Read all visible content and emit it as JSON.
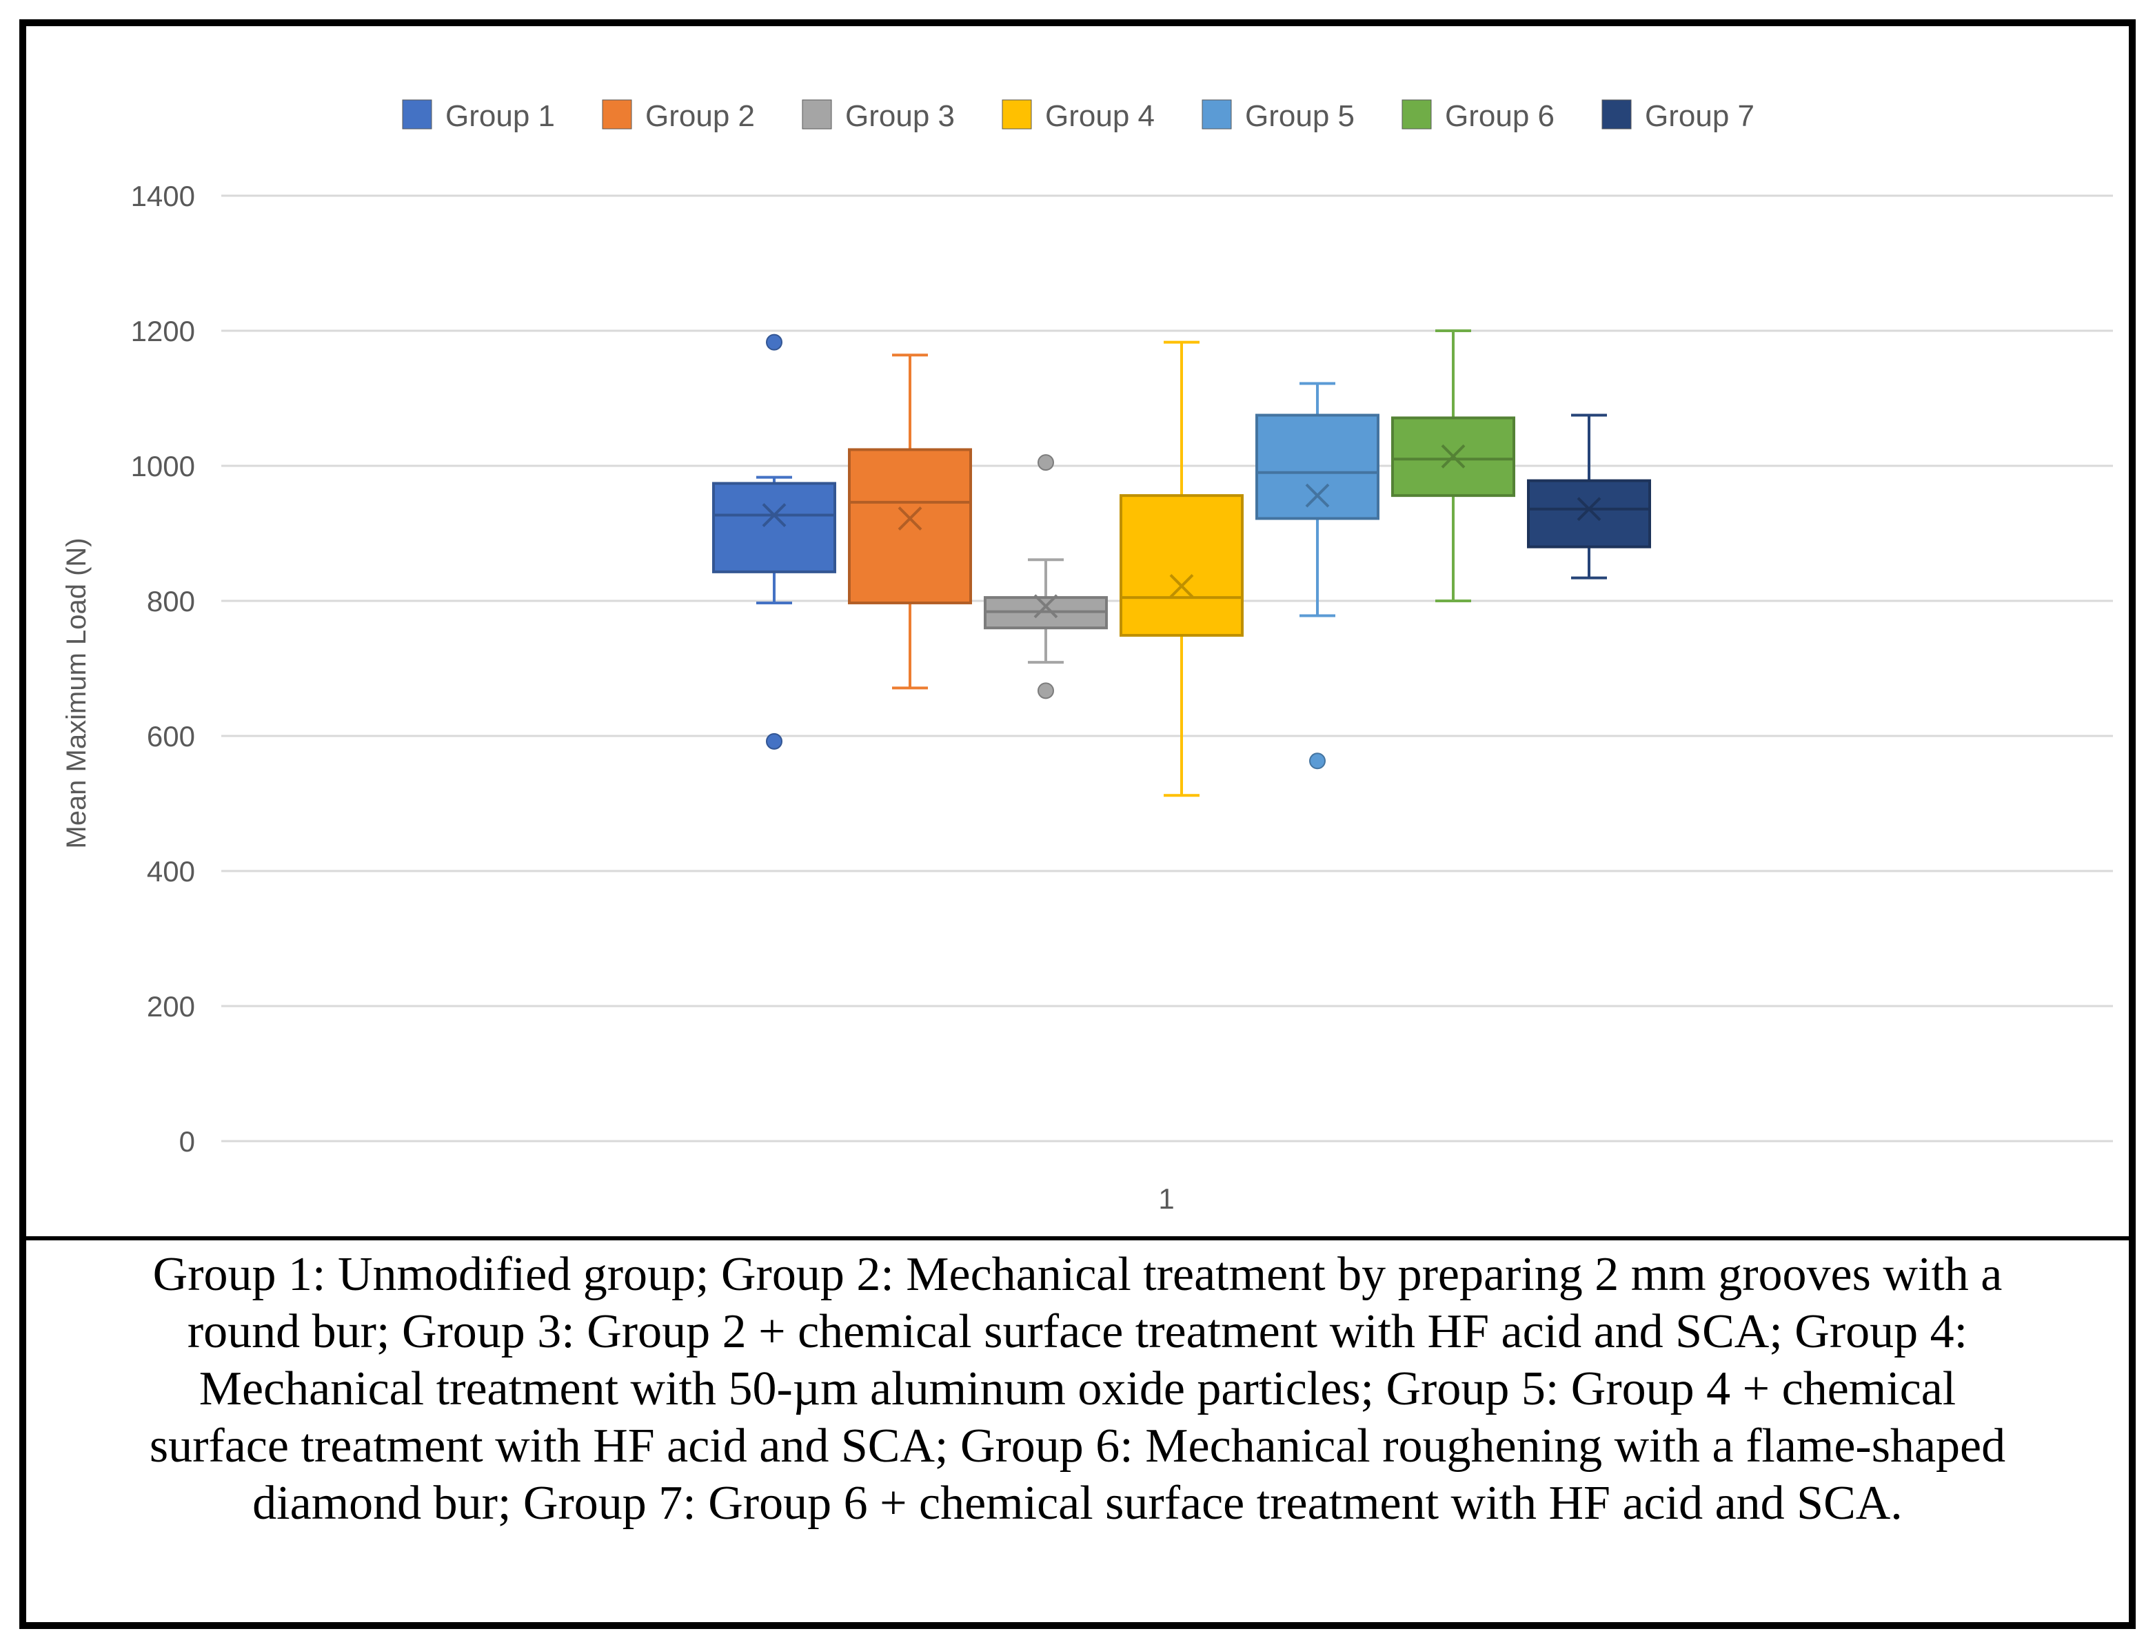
{
  "chart_data": {
    "type": "boxplot",
    "title": "",
    "xlabel": "",
    "ylabel": "Mean Maximum Load (N)",
    "ylim": [
      0,
      1400
    ],
    "yticks": [
      0,
      200,
      400,
      600,
      800,
      1000,
      1200,
      1400
    ],
    "categories": [
      "1"
    ],
    "grid": true,
    "legend_position": "top",
    "series": [
      {
        "name": "Group 1",
        "color": "#4472C4",
        "min": 797,
        "q1": 843,
        "median": 927,
        "q3": 974,
        "max": 983,
        "mean": 927,
        "outliers": [
          1183,
          592
        ]
      },
      {
        "name": "Group 2",
        "color": "#ED7D31",
        "min": 671,
        "q1": 797,
        "median": 946,
        "q3": 1024,
        "max": 1164,
        "mean": 922,
        "outliers": []
      },
      {
        "name": "Group 3",
        "color": "#A5A5A5",
        "min": 709,
        "q1": 760,
        "median": 784,
        "q3": 805,
        "max": 861,
        "mean": 792,
        "outliers": [
          1005,
          667
        ]
      },
      {
        "name": "Group 4",
        "color": "#FFC000",
        "min": 512,
        "q1": 749,
        "median": 805,
        "q3": 956,
        "max": 1183,
        "mean": 822,
        "outliers": []
      },
      {
        "name": "Group 5",
        "color": "#5B9BD5",
        "min": 778,
        "q1": 922,
        "median": 990,
        "q3": 1075,
        "max": 1122,
        "mean": 956,
        "outliers": [
          563
        ]
      },
      {
        "name": "Group 6",
        "color": "#70AD47",
        "min": 800,
        "q1": 956,
        "median": 1010,
        "q3": 1071,
        "max": 1200,
        "mean": 1014,
        "outliers": []
      },
      {
        "name": "Group 7",
        "color": "#264478",
        "min": 834,
        "q1": 880,
        "median": 936,
        "q3": 978,
        "max": 1075,
        "mean": 936,
        "outliers": []
      }
    ]
  },
  "caption": "Group 1: Unmodified group; Group 2: Mechanical treatment by preparing 2 mm grooves with a round bur; Group 3: Group 2 + chemical surface treatment with HF acid and SCA; Group 4: Mechanical treatment with 50-µm aluminum oxide particles; Group 5: Group 4 + chemical surface treatment with HF acid and SCA; Group 6: Mechanical roughening with a flame-shaped diamond bur; Group 7: Group 6 + chemical surface treatment with HF acid and SCA."
}
